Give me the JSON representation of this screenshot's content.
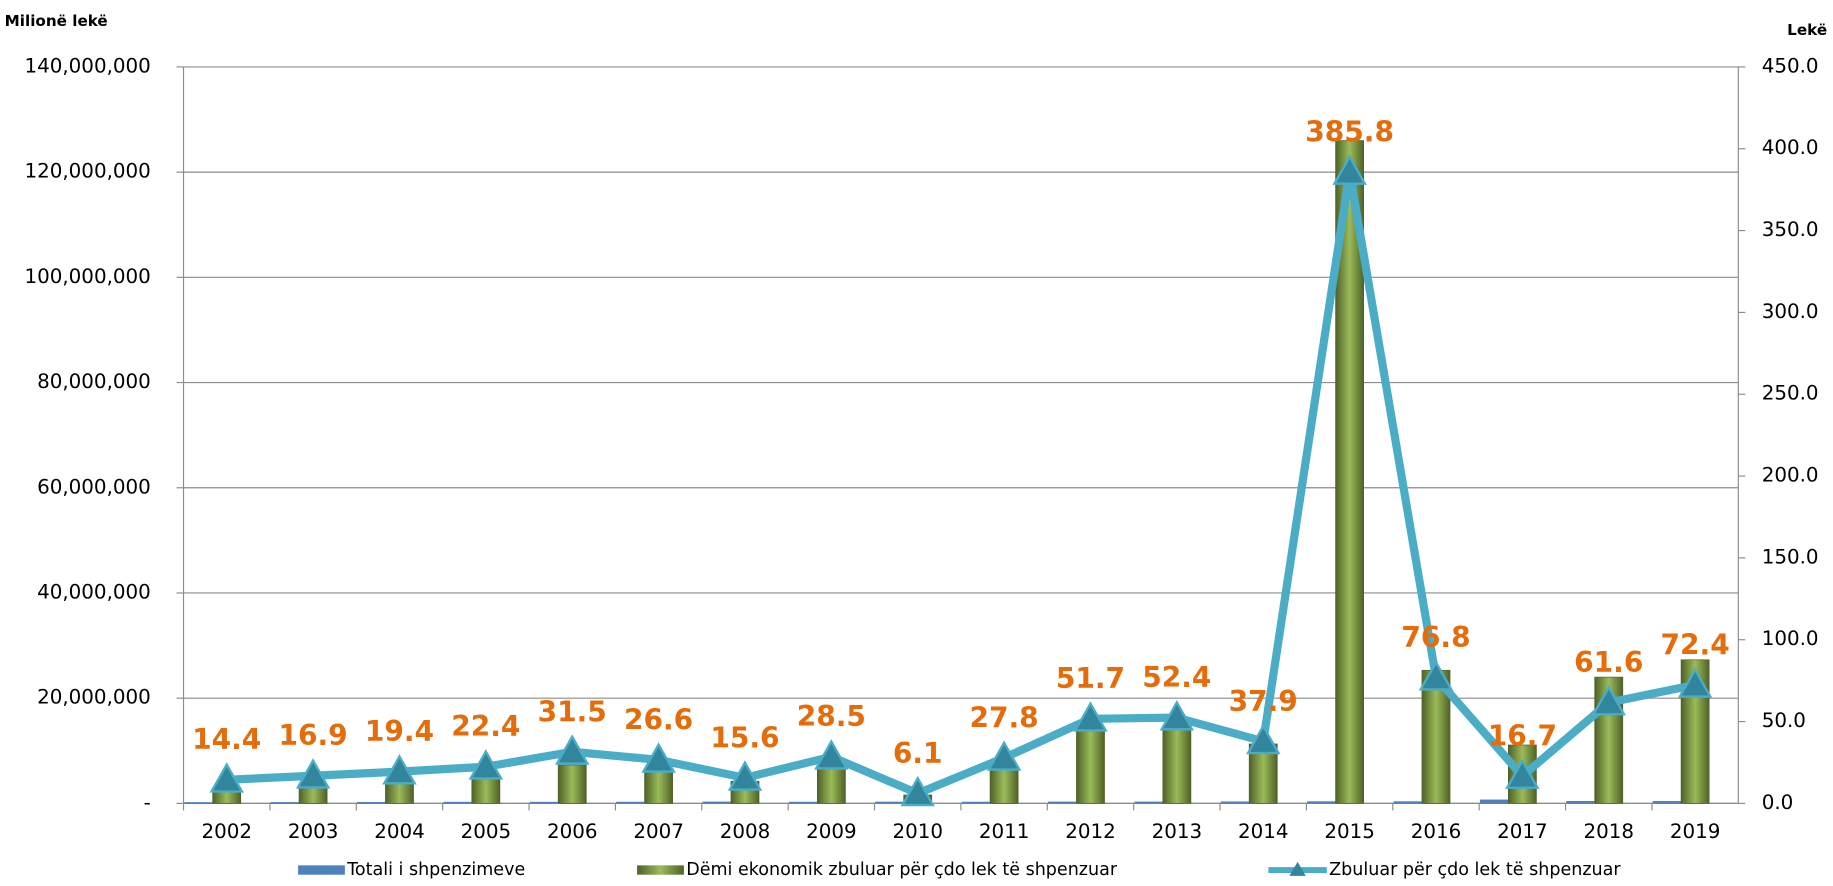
{
  "chart_data": {
    "type": "bar",
    "y_label": "Milionë lekë",
    "y2_label": "Lekë",
    "categories": [
      "2002",
      "2003",
      "2004",
      "2005",
      "2006",
      "2007",
      "2008",
      "2009",
      "2010",
      "2011",
      "2012",
      "2013",
      "2014",
      "2015",
      "2016",
      "2017",
      "2018",
      "2019"
    ],
    "series": [
      {
        "name": "Totali i shpenzimeve",
        "color": "#4f81bd",
        "values": [
          170000,
          180000,
          200000,
          230000,
          230000,
          240000,
          270000,
          240000,
          260000,
          250000,
          270000,
          270000,
          300000,
          330000,
          330000,
          660000,
          390000,
          380000
        ]
      },
      {
        "name": "Dëmi ekonomik zbuluar për çdo lek të shpenzuar",
        "color": "#77933c",
        "values": [
          2400000,
          3100000,
          3800000,
          5100000,
          7300000,
          6400000,
          4200000,
          6700000,
          1600000,
          6900000,
          13800000,
          14200000,
          11300000,
          126000000,
          25300000,
          11100000,
          24000000,
          27300000
        ]
      },
      {
        "name": "Zbuluar për çdo lek të shpenzuar",
        "color": "#4bacc6",
        "type": "line",
        "axis": "y2",
        "values": [
          14.4,
          16.9,
          19.4,
          22.4,
          31.5,
          26.6,
          15.6,
          28.5,
          6.1,
          27.8,
          51.7,
          52.4,
          37.9,
          385.8,
          76.8,
          16.7,
          61.6,
          72.4
        ]
      }
    ],
    "ylim": [
      0,
      140000000
    ],
    "yticks": [
      {
        "value": 0,
        "label": "-"
      },
      {
        "value": 20000000,
        "label": "20,000,000"
      },
      {
        "value": 40000000,
        "label": "40,000,000"
      },
      {
        "value": 60000000,
        "label": "60,000,000"
      },
      {
        "value": 80000000,
        "label": "80,000,000"
      },
      {
        "value": 100000000,
        "label": "100,000,000"
      },
      {
        "value": 120000000,
        "label": "120,000,000"
      },
      {
        "value": 140000000,
        "label": "140,000,000"
      }
    ],
    "y2lim": [
      0,
      450
    ],
    "y2ticks": [
      {
        "value": 0,
        "label": "0.0"
      },
      {
        "value": 50,
        "label": "50.0"
      },
      {
        "value": 100,
        "label": "100.0"
      },
      {
        "value": 150,
        "label": "150.0"
      },
      {
        "value": 200,
        "label": "200.0"
      },
      {
        "value": 250,
        "label": "250.0"
      },
      {
        "value": 300,
        "label": "300.0"
      },
      {
        "value": 350,
        "label": "350.0"
      },
      {
        "value": 400,
        "label": "400.0"
      },
      {
        "value": 450,
        "label": "450.0"
      }
    ],
    "grid": true,
    "legend": "bottom"
  }
}
